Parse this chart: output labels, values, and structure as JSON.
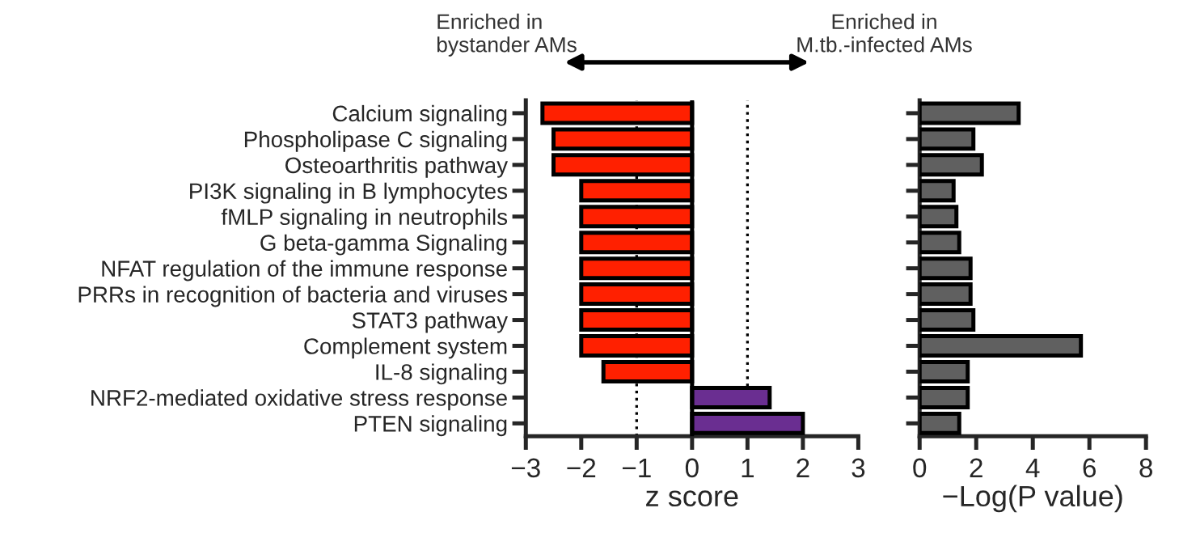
{
  "chart_data": [
    {
      "type": "bar",
      "orientation": "horizontal",
      "xlabel": "z score",
      "categories": [
        "Calcium signaling",
        "Phospholipase C signaling",
        "Osteoarthritis pathway",
        "PI3K signaling in B lymphocytes",
        "fMLP signaling in neutrophils",
        "G beta-gamma Signaling",
        "NFAT regulation of the immune response",
        "PRRs in recognition of bacteria and viruses",
        "STAT3 pathway",
        "Complement system",
        "IL-8 signaling",
        "NRF2-mediated oxidative stress response",
        "PTEN signaling"
      ],
      "values": [
        -2.7,
        -2.5,
        -2.5,
        -2.0,
        -2.0,
        -2.0,
        -2.0,
        -2.0,
        -2.0,
        -2.0,
        -1.6,
        1.4,
        2.0
      ],
      "colors": [
        "#ff2000",
        "#ff2000",
        "#ff2000",
        "#ff2000",
        "#ff2000",
        "#ff2000",
        "#ff2000",
        "#ff2000",
        "#ff2000",
        "#ff2000",
        "#ff2000",
        "#6a2e91",
        "#6a2e91"
      ],
      "xlim": [
        -3,
        3
      ],
      "xticks": [
        {
          "value": -3,
          "label": "−3"
        },
        {
          "value": -2,
          "label": "−2"
        },
        {
          "value": -1,
          "label": "−1"
        },
        0,
        1,
        2,
        3
      ],
      "ref_lines": [
        {
          "axis": "x",
          "value": -1,
          "color": "#000000",
          "line_style": "dotted"
        },
        {
          "axis": "x",
          "value": 1,
          "color": "#000000",
          "line_style": "dotted"
        }
      ],
      "annotations": [
        "Enriched in\nbystander AMs"
      ]
    },
    {
      "type": "bar",
      "orientation": "horizontal",
      "xlabel": "−Log(P value)",
      "categories": [
        null,
        null,
        null,
        null,
        null,
        null,
        null,
        null,
        null,
        null,
        null,
        null,
        null
      ],
      "values": [
        3.5,
        1.9,
        2.2,
        1.2,
        1.3,
        1.4,
        1.8,
        1.8,
        1.9,
        5.7,
        1.7,
        1.7,
        1.4
      ],
      "color": "#606060",
      "xlim": [
        0,
        8
      ],
      "xticks": [
        0,
        2,
        4,
        6,
        8
      ],
      "tick_labels": "x",
      "annotations": [
        "Enriched in\nM.tb.-infected AMs"
      ]
    }
  ]
}
